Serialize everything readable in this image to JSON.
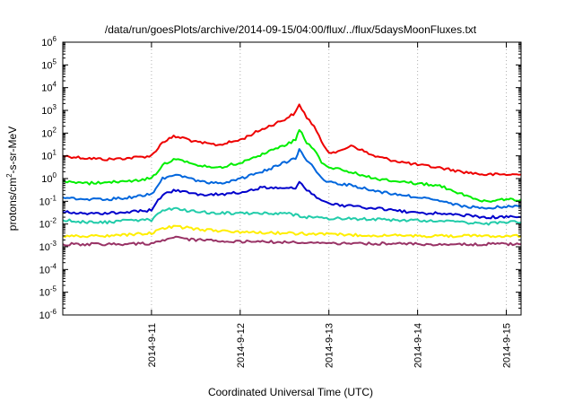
{
  "chart_data": {
    "type": "line",
    "title": "/data/run/goesPlots/archive/2014-09-15/04:00/flux/../flux/5daysMoonFluxes.txt",
    "xlabel": "Coordinated Universal Time (UTC)",
    "ylabel": "protons/cm2-s-sr-MeV",
    "ylabel_parts": [
      "protons/cm",
      "2",
      "-s-sr-MeV"
    ],
    "y_scale": "log",
    "ylim": [
      1e-06,
      1000000.0
    ],
    "y_ticks": [
      {
        "exp": "-6"
      },
      {
        "exp": "-5"
      },
      {
        "exp": "-4"
      },
      {
        "exp": "-3"
      },
      {
        "exp": "-2"
      },
      {
        "exp": "-1"
      },
      {
        "exp": "0"
      },
      {
        "exp": "1"
      },
      {
        "exp": "2"
      },
      {
        "exp": "3"
      },
      {
        "exp": "4"
      },
      {
        "exp": "5"
      },
      {
        "exp": "6"
      }
    ],
    "y_tick_base": "10",
    "xlim": [
      "2014-09-10T00:00",
      "2014-09-15T04:00"
    ],
    "x_ticks": [
      "2014-9-11",
      "2014-9-12",
      "2014-9-13",
      "2014-9-14",
      "2014-9-15"
    ],
    "grid": true,
    "legend": "none",
    "series": [
      {
        "color": "#ee0000",
        "points": [
          [
            "2014-09-10T00:00",
            10
          ],
          [
            "2014-09-10T06:00",
            8
          ],
          [
            "2014-09-10T12:00",
            7
          ],
          [
            "2014-09-10T18:00",
            8
          ],
          [
            "2014-09-11T00:00",
            10
          ],
          [
            "2014-09-11T03:00",
            40
          ],
          [
            "2014-09-11T06:00",
            70
          ],
          [
            "2014-09-11T09:00",
            60
          ],
          [
            "2014-09-11T12:00",
            40
          ],
          [
            "2014-09-11T18:00",
            30
          ],
          [
            "2014-09-12T00:00",
            50
          ],
          [
            "2014-09-12T06:00",
            150
          ],
          [
            "2014-09-12T12:00",
            400
          ],
          [
            "2014-09-12T15:00",
            800
          ],
          [
            "2014-09-12T16:00",
            1800
          ],
          [
            "2014-09-12T18:00",
            500
          ],
          [
            "2014-09-12T20:00",
            200
          ],
          [
            "2014-09-12T22:00",
            40
          ],
          [
            "2014-09-13T00:00",
            15
          ],
          [
            "2014-09-13T03:00",
            15
          ],
          [
            "2014-09-13T06:00",
            30
          ],
          [
            "2014-09-13T12:00",
            10
          ],
          [
            "2014-09-13T18:00",
            6
          ],
          [
            "2014-09-14T00:00",
            4
          ],
          [
            "2014-09-14T06:00",
            3
          ],
          [
            "2014-09-14T12:00",
            2
          ],
          [
            "2014-09-14T18:00",
            1.5
          ],
          [
            "2014-09-15T00:00",
            1.5
          ],
          [
            "2014-09-15T04:00",
            1.5
          ]
        ]
      },
      {
        "color": "#00ee00",
        "points": [
          [
            "2014-09-10T00:00",
            0.8
          ],
          [
            "2014-09-10T06:00",
            0.6
          ],
          [
            "2014-09-10T12:00",
            0.7
          ],
          [
            "2014-09-10T18:00",
            0.8
          ],
          [
            "2014-09-11T00:00",
            1
          ],
          [
            "2014-09-11T03:00",
            4
          ],
          [
            "2014-09-11T06:00",
            7
          ],
          [
            "2014-09-11T09:00",
            6
          ],
          [
            "2014-09-11T12:00",
            4
          ],
          [
            "2014-09-11T18:00",
            3
          ],
          [
            "2014-09-12T00:00",
            5
          ],
          [
            "2014-09-12T06:00",
            12
          ],
          [
            "2014-09-12T12:00",
            30
          ],
          [
            "2014-09-12T15:00",
            50
          ],
          [
            "2014-09-12T16:00",
            150
          ],
          [
            "2014-09-12T18:00",
            40
          ],
          [
            "2014-09-12T20:00",
            20
          ],
          [
            "2014-09-12T22:00",
            5
          ],
          [
            "2014-09-13T00:00",
            3
          ],
          [
            "2014-09-13T06:00",
            2
          ],
          [
            "2014-09-13T12:00",
            1
          ],
          [
            "2014-09-13T18:00",
            0.8
          ],
          [
            "2014-09-14T00:00",
            0.6
          ],
          [
            "2014-09-14T06:00",
            0.5
          ],
          [
            "2014-09-14T12:00",
            0.2
          ],
          [
            "2014-09-14T18:00",
            0.1
          ],
          [
            "2014-09-15T00:00",
            0.12
          ],
          [
            "2014-09-15T04:00",
            0.12
          ]
        ]
      },
      {
        "color": "#0066dd",
        "points": [
          [
            "2014-09-10T00:00",
            0.15
          ],
          [
            "2014-09-10T06:00",
            0.12
          ],
          [
            "2014-09-10T12:00",
            0.12
          ],
          [
            "2014-09-10T18:00",
            0.15
          ],
          [
            "2014-09-11T00:00",
            0.2
          ],
          [
            "2014-09-11T03:00",
            1
          ],
          [
            "2014-09-11T06:00",
            1.5
          ],
          [
            "2014-09-11T09:00",
            1.2
          ],
          [
            "2014-09-11T12:00",
            0.8
          ],
          [
            "2014-09-11T18:00",
            0.6
          ],
          [
            "2014-09-12T00:00",
            1
          ],
          [
            "2014-09-12T06:00",
            2
          ],
          [
            "2014-09-12T12:00",
            5
          ],
          [
            "2014-09-12T15:00",
            8
          ],
          [
            "2014-09-12T16:00",
            20
          ],
          [
            "2014-09-12T18:00",
            6
          ],
          [
            "2014-09-12T20:00",
            3
          ],
          [
            "2014-09-12T22:00",
            1
          ],
          [
            "2014-09-13T00:00",
            0.7
          ],
          [
            "2014-09-13T06:00",
            0.5
          ],
          [
            "2014-09-13T12:00",
            0.3
          ],
          [
            "2014-09-13T18:00",
            0.2
          ],
          [
            "2014-09-14T00:00",
            0.15
          ],
          [
            "2014-09-14T06:00",
            0.1
          ],
          [
            "2014-09-14T12:00",
            0.06
          ],
          [
            "2014-09-14T18:00",
            0.05
          ],
          [
            "2014-09-15T00:00",
            0.06
          ],
          [
            "2014-09-15T04:00",
            0.06
          ]
        ]
      },
      {
        "color": "#0000cc",
        "points": [
          [
            "2014-09-10T00:00",
            0.035
          ],
          [
            "2014-09-10T06:00",
            0.03
          ],
          [
            "2014-09-10T12:00",
            0.03
          ],
          [
            "2014-09-10T18:00",
            0.035
          ],
          [
            "2014-09-11T00:00",
            0.04
          ],
          [
            "2014-09-11T03:00",
            0.2
          ],
          [
            "2014-09-11T06:00",
            0.3
          ],
          [
            "2014-09-11T09:00",
            0.25
          ],
          [
            "2014-09-11T12:00",
            0.2
          ],
          [
            "2014-09-11T18:00",
            0.2
          ],
          [
            "2014-09-12T00:00",
            0.25
          ],
          [
            "2014-09-12T06:00",
            0.4
          ],
          [
            "2014-09-12T12:00",
            0.4
          ],
          [
            "2014-09-12T15:00",
            0.4
          ],
          [
            "2014-09-12T16:00",
            0.8
          ],
          [
            "2014-09-12T18:00",
            0.3
          ],
          [
            "2014-09-12T20:00",
            0.2
          ],
          [
            "2014-09-12T22:00",
            0.1
          ],
          [
            "2014-09-13T00:00",
            0.08
          ],
          [
            "2014-09-13T06:00",
            0.06
          ],
          [
            "2014-09-13T12:00",
            0.05
          ],
          [
            "2014-09-13T18:00",
            0.04
          ],
          [
            "2014-09-14T00:00",
            0.03
          ],
          [
            "2014-09-14T06:00",
            0.03
          ],
          [
            "2014-09-14T12:00",
            0.025
          ],
          [
            "2014-09-14T18:00",
            0.02
          ],
          [
            "2014-09-15T00:00",
            0.02
          ],
          [
            "2014-09-15T04:00",
            0.02
          ]
        ]
      },
      {
        "color": "#22ccaa",
        "points": [
          [
            "2014-09-10T00:00",
            0.015
          ],
          [
            "2014-09-10T06:00",
            0.012
          ],
          [
            "2014-09-10T12:00",
            0.012
          ],
          [
            "2014-09-10T18:00",
            0.015
          ],
          [
            "2014-09-11T00:00",
            0.015
          ],
          [
            "2014-09-11T03:00",
            0.04
          ],
          [
            "2014-09-11T06:00",
            0.05
          ],
          [
            "2014-09-11T09:00",
            0.04
          ],
          [
            "2014-09-11T12:00",
            0.035
          ],
          [
            "2014-09-11T18:00",
            0.03
          ],
          [
            "2014-09-12T00:00",
            0.03
          ],
          [
            "2014-09-12T06:00",
            0.03
          ],
          [
            "2014-09-12T12:00",
            0.03
          ],
          [
            "2014-09-12T15:00",
            0.025
          ],
          [
            "2014-09-12T18:00",
            0.02
          ],
          [
            "2014-09-12T22:00",
            0.02
          ],
          [
            "2014-09-13T00:00",
            0.018
          ],
          [
            "2014-09-13T06:00",
            0.017
          ],
          [
            "2014-09-13T12:00",
            0.016
          ],
          [
            "2014-09-13T18:00",
            0.015
          ],
          [
            "2014-09-14T00:00",
            0.014
          ],
          [
            "2014-09-14T06:00",
            0.013
          ],
          [
            "2014-09-14T12:00",
            0.012
          ],
          [
            "2014-09-14T18:00",
            0.01
          ],
          [
            "2014-09-15T00:00",
            0.012
          ],
          [
            "2014-09-15T04:00",
            0.012
          ]
        ]
      },
      {
        "color": "#ffee00",
        "points": [
          [
            "2014-09-10T00:00",
            0.003
          ],
          [
            "2014-09-10T12:00",
            0.003
          ],
          [
            "2014-09-11T00:00",
            0.004
          ],
          [
            "2014-09-11T03:00",
            0.006
          ],
          [
            "2014-09-11T06:00",
            0.008
          ],
          [
            "2014-09-11T09:00",
            0.007
          ],
          [
            "2014-09-11T12:00",
            0.006
          ],
          [
            "2014-09-11T18:00",
            0.005
          ],
          [
            "2014-09-12T00:00",
            0.0045
          ],
          [
            "2014-09-12T12:00",
            0.004
          ],
          [
            "2014-09-13T00:00",
            0.0035
          ],
          [
            "2014-09-13T12:00",
            0.0032
          ],
          [
            "2014-09-14T00:00",
            0.003
          ],
          [
            "2014-09-14T12:00",
            0.003
          ],
          [
            "2014-09-15T00:00",
            0.003
          ],
          [
            "2014-09-15T04:00",
            0.003
          ]
        ]
      },
      {
        "color": "#993366",
        "points": [
          [
            "2014-09-10T00:00",
            0.0013
          ],
          [
            "2014-09-10T12:00",
            0.0013
          ],
          [
            "2014-09-11T00:00",
            0.0014
          ],
          [
            "2014-09-11T03:00",
            0.002
          ],
          [
            "2014-09-11T06:00",
            0.0025
          ],
          [
            "2014-09-11T09:00",
            0.0022
          ],
          [
            "2014-09-11T12:00",
            0.002
          ],
          [
            "2014-09-11T18:00",
            0.0018
          ],
          [
            "2014-09-12T00:00",
            0.0017
          ],
          [
            "2014-09-12T12:00",
            0.0016
          ],
          [
            "2014-09-13T00:00",
            0.0014
          ],
          [
            "2014-09-13T12:00",
            0.0014
          ],
          [
            "2014-09-14T00:00",
            0.0013
          ],
          [
            "2014-09-14T12:00",
            0.0013
          ],
          [
            "2014-09-15T00:00",
            0.0013
          ],
          [
            "2014-09-15T04:00",
            0.0013
          ]
        ]
      }
    ]
  }
}
